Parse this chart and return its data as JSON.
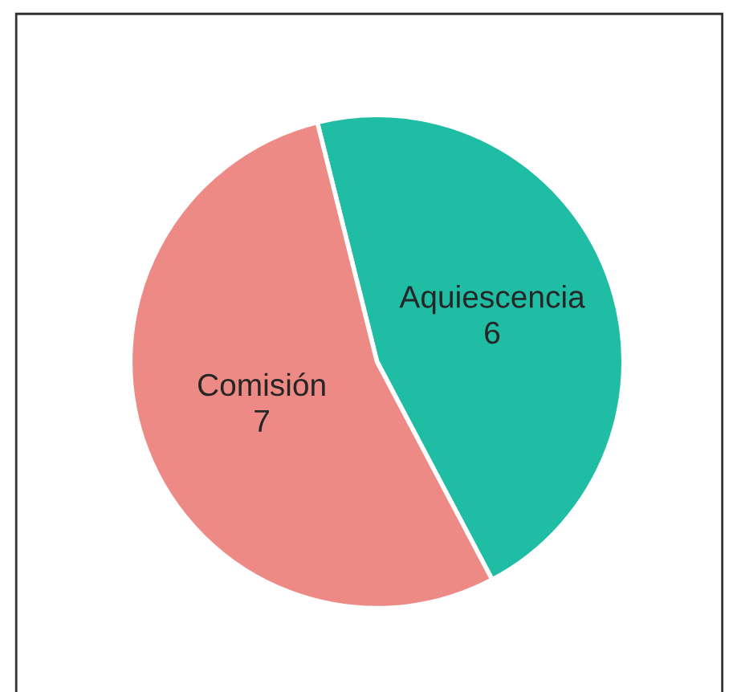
{
  "chart_data": {
    "type": "pie",
    "categories": [
      "Aquiescencia",
      "Comisión"
    ],
    "values": [
      6,
      7
    ],
    "colors": [
      "#20bda5",
      "#ee8a85"
    ],
    "data_labels": true
  }
}
